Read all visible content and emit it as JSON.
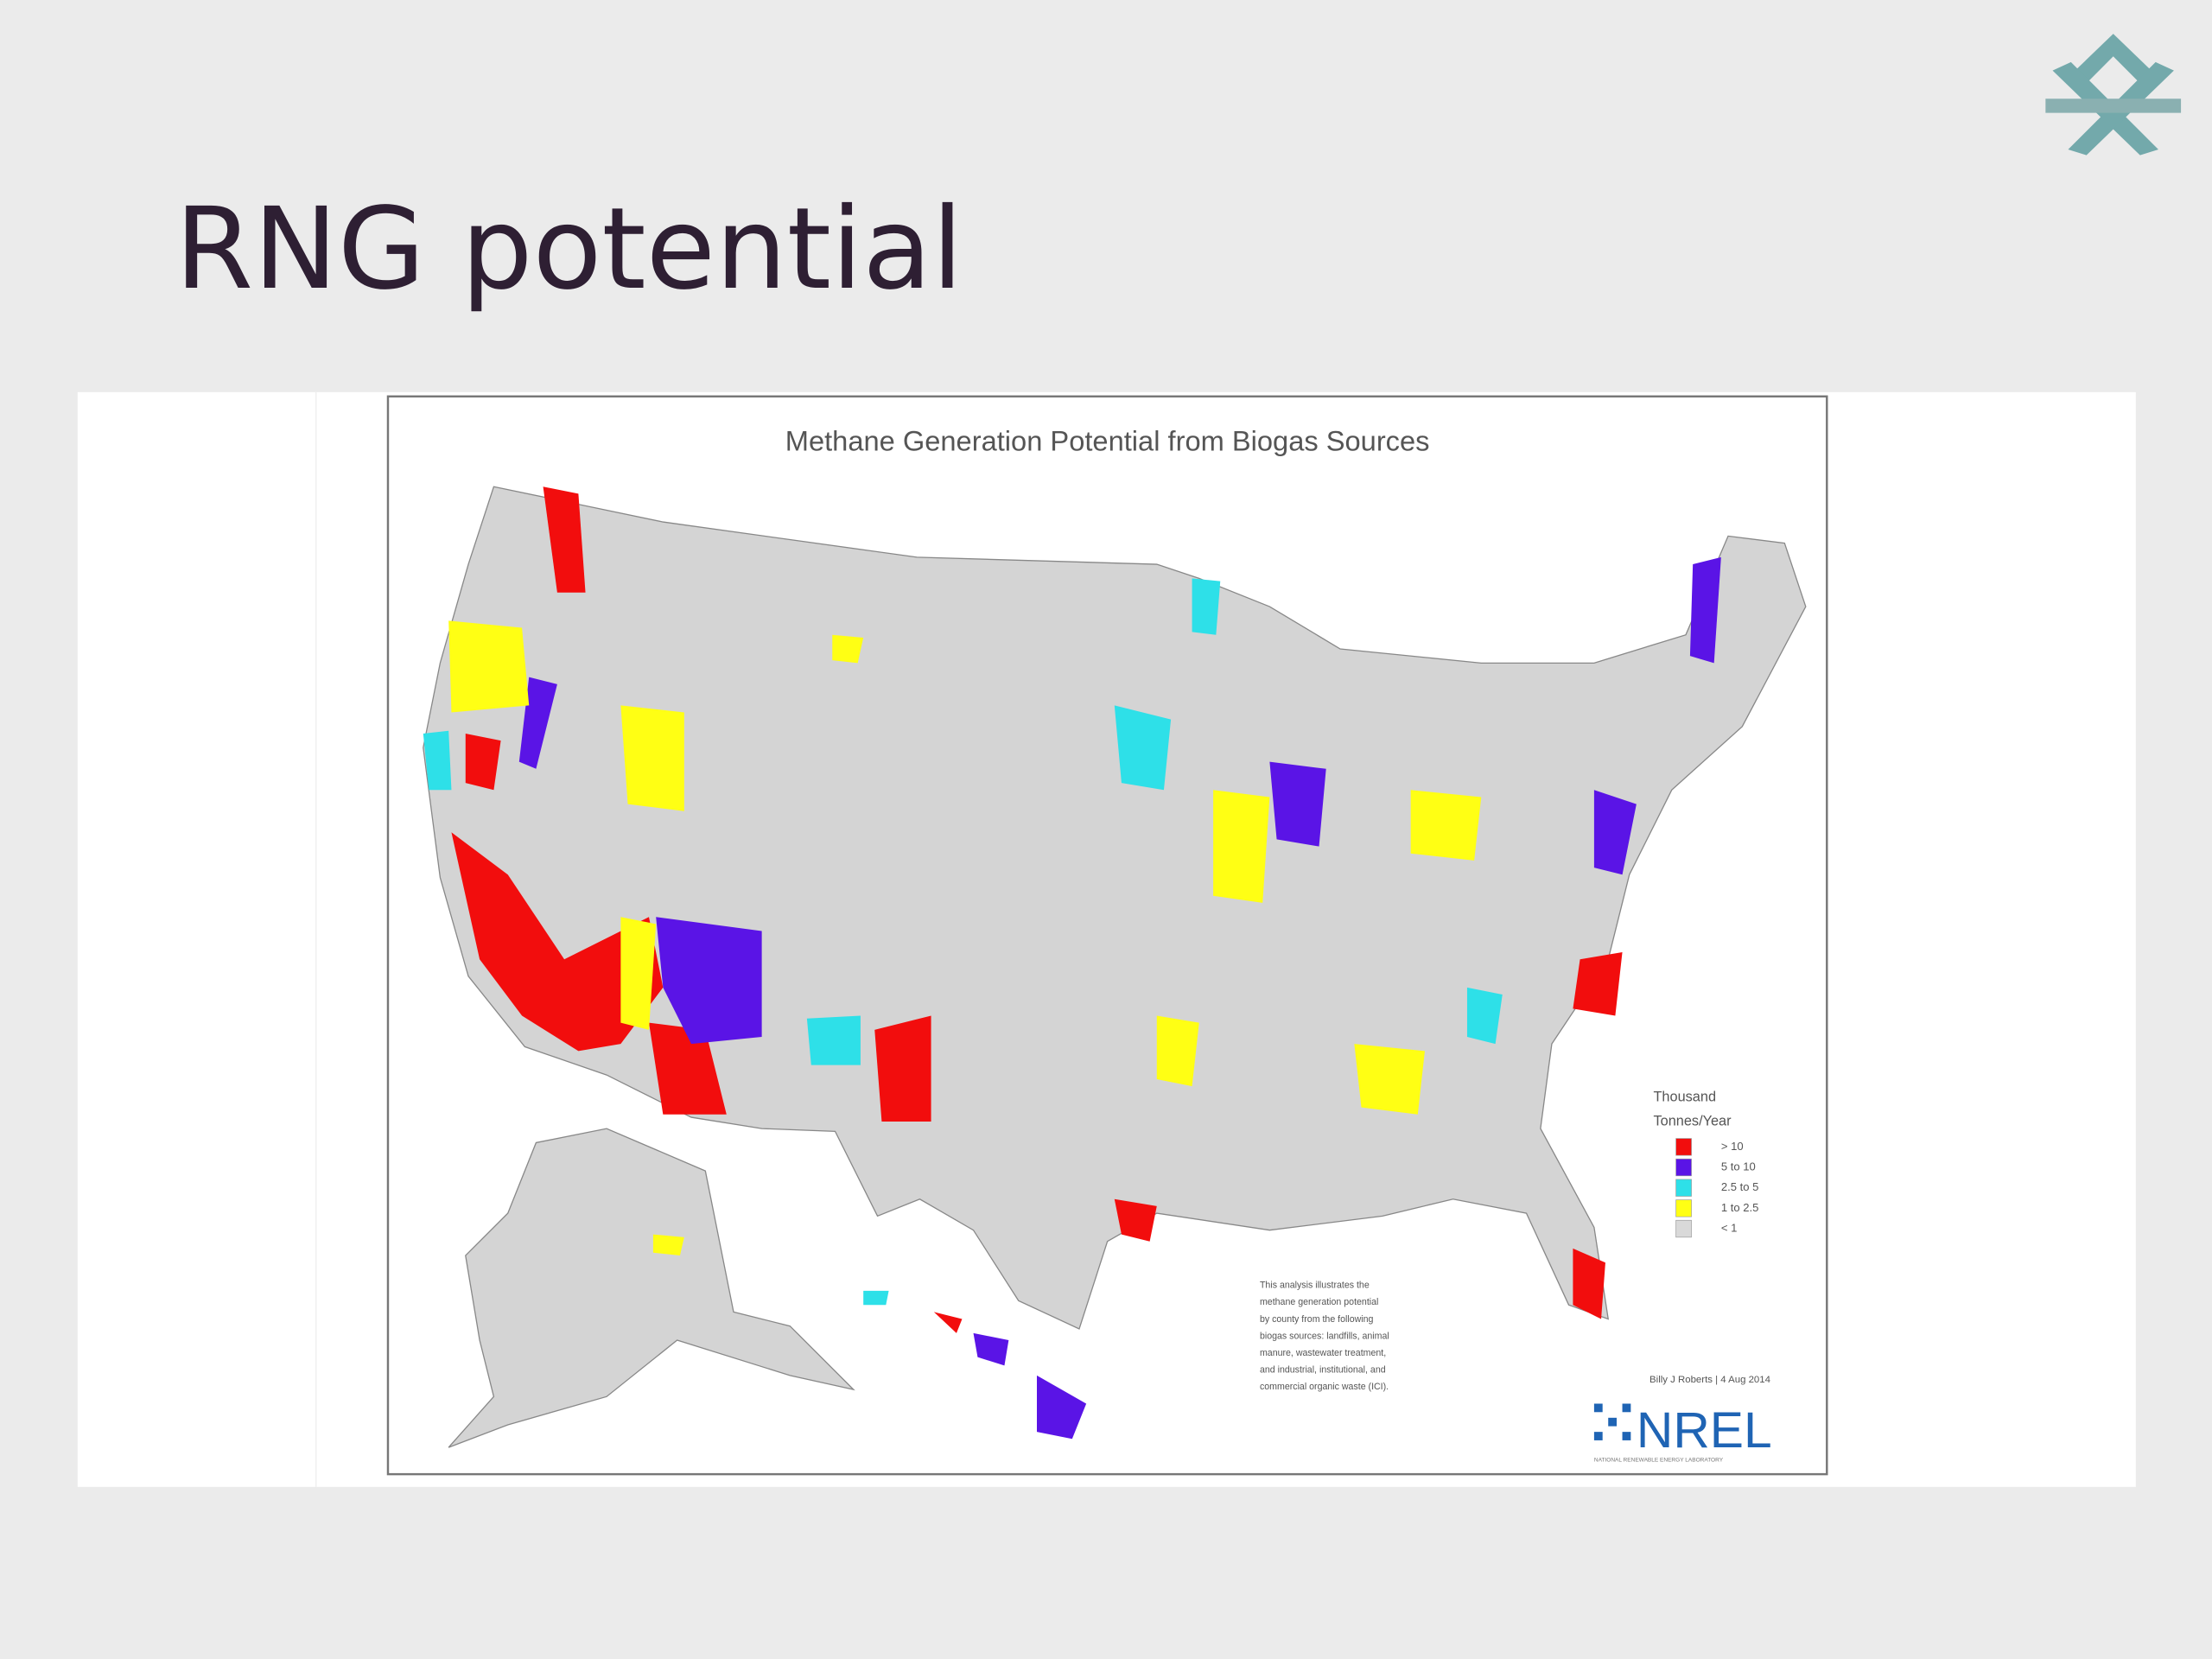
{
  "slide": {
    "title": "RNG potential"
  },
  "map": {
    "title": "Methane Generation Potential from Biogas Sources",
    "legend": {
      "title": [
        "Thousand",
        "Tonnes/Year"
      ],
      "items": [
        {
          "label": "> 10",
          "color": "#f20d0d"
        },
        {
          "label": "5 to 10",
          "color": "#5a14e6"
        },
        {
          "label": "2.5 to 5",
          "color": "#2ee0e8"
        },
        {
          "label": "1 to 2.5",
          "color": "#ffff14"
        },
        {
          "label": "< 1",
          "color": "#d9d9d9"
        }
      ]
    },
    "note": [
      "This analysis illustrates the",
      "methane generation potential",
      "by county from the following",
      "biogas sources: landfills, animal",
      "manure, wastewater treatment,",
      "and industrial, institutional, and",
      "commercial organic waste (ICI)."
    ],
    "credit": "Billy J Roberts | 4 Aug 2014",
    "logo": "NREL",
    "logo_subtitle": "NATIONAL RENEWABLE ENERGY LABORATORY"
  }
}
